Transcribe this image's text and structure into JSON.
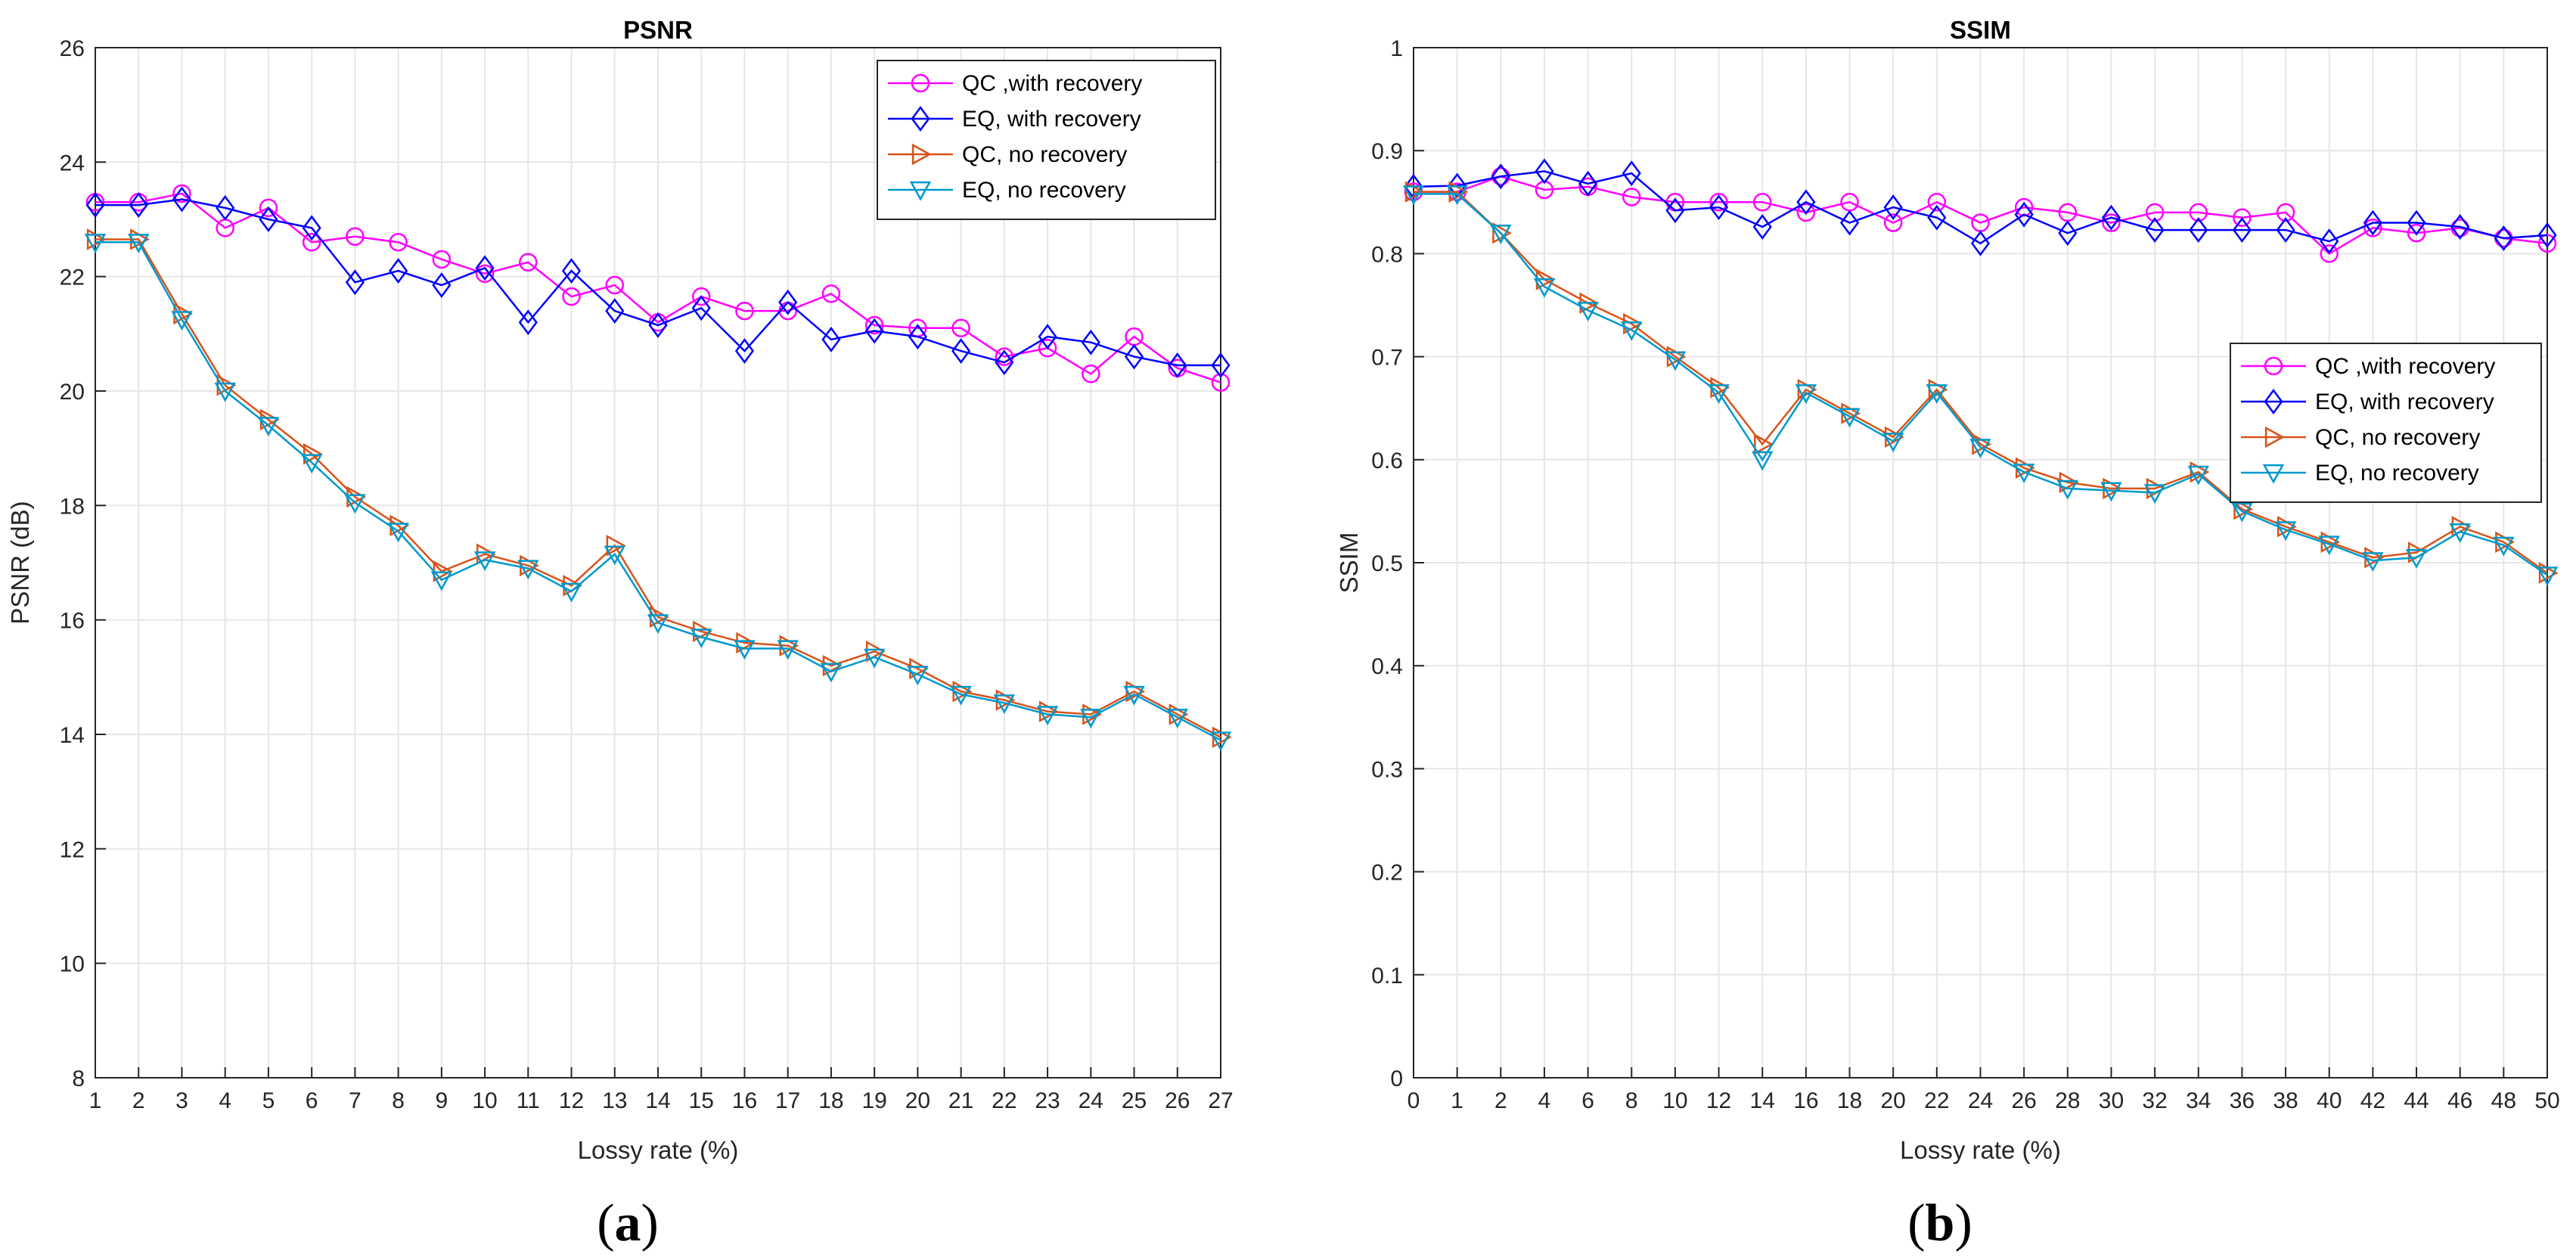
{
  "chart_data": [
    {
      "type": "line",
      "title": "PSNR",
      "xlabel": "Lossy rate (%)",
      "ylabel": "PSNR (dB)",
      "sublabel_open": "(",
      "sublabel_letter": "a",
      "sublabel_close": ")",
      "xlim": [
        1,
        27
      ],
      "ylim": [
        8,
        26
      ],
      "xticks": [
        1,
        2,
        3,
        4,
        5,
        6,
        7,
        8,
        9,
        10,
        11,
        12,
        13,
        14,
        15,
        16,
        17,
        18,
        19,
        20,
        21,
        22,
        23,
        24,
        25,
        26,
        27
      ],
      "yticks": [
        8,
        10,
        12,
        14,
        16,
        18,
        20,
        22,
        24,
        26
      ],
      "grid": true,
      "legend_position": "top-right",
      "x": [
        1,
        2,
        3,
        4,
        5,
        6,
        7,
        8,
        9,
        10,
        11,
        12,
        13,
        14,
        15,
        16,
        17,
        18,
        19,
        20,
        21,
        22,
        23,
        24,
        25,
        26,
        27
      ],
      "series": [
        {
          "name": "QC ,with recovery",
          "color": "#ff00ff",
          "marker": "circle",
          "values": [
            23.3,
            23.3,
            23.45,
            22.85,
            23.2,
            22.6,
            22.7,
            22.6,
            22.3,
            22.05,
            22.25,
            21.65,
            21.85,
            21.2,
            21.65,
            21.4,
            21.4,
            21.7,
            21.15,
            21.1,
            21.1,
            20.6,
            20.75,
            20.3,
            20.95,
            20.4,
            20.15
          ]
        },
        {
          "name": "EQ, with recovery",
          "color": "#0000ff",
          "marker": "diamond",
          "values": [
            23.25,
            23.25,
            23.35,
            23.2,
            23.0,
            22.85,
            21.9,
            22.1,
            21.85,
            22.15,
            21.2,
            22.1,
            21.4,
            21.15,
            21.45,
            20.7,
            21.55,
            20.9,
            21.05,
            20.95,
            20.7,
            20.5,
            20.95,
            20.85,
            20.6,
            20.45,
            20.45
          ]
        },
        {
          "name": "QC, no recovery",
          "color": "#d95319",
          "marker": "triangle-right",
          "values": [
            22.65,
            22.65,
            21.35,
            20.1,
            19.5,
            18.9,
            18.15,
            17.65,
            16.85,
            17.15,
            16.95,
            16.6,
            17.3,
            16.05,
            15.8,
            15.6,
            15.55,
            15.2,
            15.45,
            15.15,
            14.75,
            14.6,
            14.4,
            14.35,
            14.75,
            14.35,
            13.95
          ]
        },
        {
          "name": "EQ, no recovery",
          "color": "#0099cc",
          "marker": "triangle-down",
          "values": [
            22.6,
            22.6,
            21.25,
            20.0,
            19.4,
            18.75,
            18.05,
            17.55,
            16.7,
            17.05,
            16.9,
            16.5,
            17.15,
            15.95,
            15.7,
            15.5,
            15.5,
            15.1,
            15.35,
            15.05,
            14.7,
            14.55,
            14.35,
            14.3,
            14.7,
            14.3,
            13.9
          ]
        }
      ]
    },
    {
      "type": "line",
      "title": "SSIM",
      "xlabel": "Lossy rate (%)",
      "ylabel": "SSIM",
      "sublabel_open": "(",
      "sublabel_letter": "b",
      "sublabel_close": ")",
      "xlim": [
        0,
        50
      ],
      "ylim": [
        0,
        1
      ],
      "xticks": [
        0,
        1,
        2,
        4,
        6,
        8,
        10,
        12,
        14,
        16,
        18,
        20,
        22,
        24,
        26,
        28,
        30,
        32,
        34,
        36,
        38,
        40,
        42,
        44,
        46,
        48,
        50
      ],
      "ytick_labels": [
        "0",
        "0.1",
        "0.2",
        "0.3",
        "0.4",
        "0.5",
        "0.6",
        "0.7",
        "0.8",
        "0.9",
        "1"
      ],
      "yticks": [
        0,
        0.1,
        0.2,
        0.3,
        0.4,
        0.5,
        0.6,
        0.7,
        0.8,
        0.9,
        1
      ],
      "grid": true,
      "legend_position": "middle-right",
      "x": [
        0,
        1,
        2,
        4,
        6,
        8,
        10,
        12,
        14,
        16,
        18,
        20,
        22,
        24,
        26,
        28,
        30,
        32,
        34,
        36,
        38,
        40,
        42,
        44,
        46,
        48,
        50
      ],
      "series": [
        {
          "name": "QC ,with recovery",
          "color": "#ff00ff",
          "marker": "circle",
          "values": [
            0.86,
            0.86,
            0.875,
            0.862,
            0.865,
            0.855,
            0.85,
            0.85,
            0.85,
            0.84,
            0.85,
            0.83,
            0.85,
            0.83,
            0.845,
            0.84,
            0.83,
            0.84,
            0.84,
            0.835,
            0.84,
            0.8,
            0.825,
            0.82,
            0.825,
            0.815,
            0.81
          ]
        },
        {
          "name": "EQ, with recovery",
          "color": "#0000ff",
          "marker": "diamond",
          "values": [
            0.865,
            0.866,
            0.875,
            0.88,
            0.868,
            0.878,
            0.842,
            0.845,
            0.826,
            0.85,
            0.83,
            0.845,
            0.835,
            0.81,
            0.838,
            0.82,
            0.835,
            0.823,
            0.823,
            0.823,
            0.823,
            0.812,
            0.83,
            0.83,
            0.826,
            0.815,
            0.818
          ]
        },
        {
          "name": "QC, no recovery",
          "color": "#d95319",
          "marker": "triangle-right",
          "values": [
            0.86,
            0.86,
            0.82,
            0.775,
            0.752,
            0.732,
            0.7,
            0.67,
            0.615,
            0.668,
            0.645,
            0.622,
            0.668,
            0.615,
            0.592,
            0.578,
            0.572,
            0.572,
            0.588,
            0.552,
            0.535,
            0.52,
            0.505,
            0.51,
            0.535,
            0.52,
            0.49
          ]
        },
        {
          "name": "EQ, no recovery",
          "color": "#0099cc",
          "marker": "triangle-down",
          "values": [
            0.858,
            0.858,
            0.82,
            0.768,
            0.745,
            0.726,
            0.697,
            0.665,
            0.6,
            0.665,
            0.642,
            0.618,
            0.665,
            0.612,
            0.588,
            0.572,
            0.57,
            0.568,
            0.586,
            0.55,
            0.532,
            0.518,
            0.502,
            0.505,
            0.53,
            0.517,
            0.488
          ]
        }
      ]
    }
  ]
}
